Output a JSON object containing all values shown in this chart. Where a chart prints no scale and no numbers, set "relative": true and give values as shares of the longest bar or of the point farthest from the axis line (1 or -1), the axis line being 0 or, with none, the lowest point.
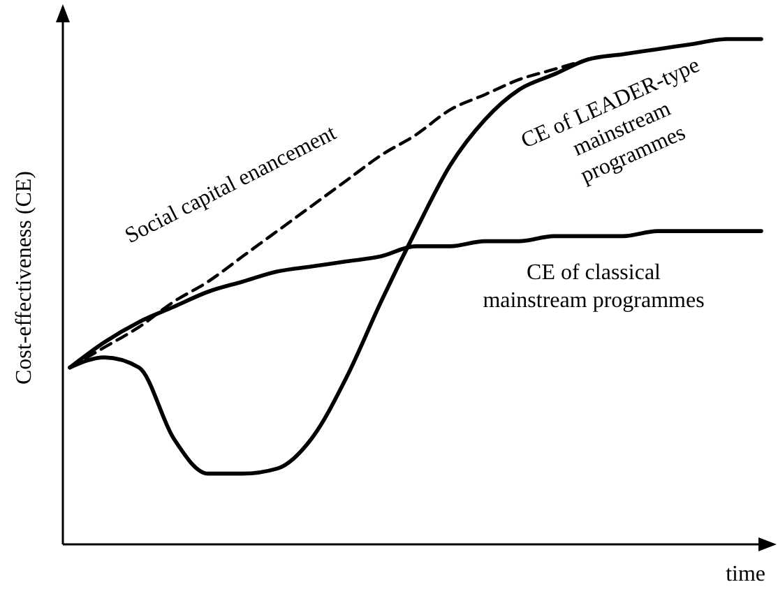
{
  "chart_data": {
    "type": "line",
    "relative": true,
    "xlabel": "time",
    "ylabel": "Cost-effectiveness (CE)",
    "marker": "none",
    "categories": [
      null,
      null,
      null,
      null,
      null,
      null,
      null,
      null,
      null,
      null,
      null,
      null,
      null,
      null,
      null,
      null,
      null,
      null,
      null,
      null,
      null
    ],
    "series": [
      {
        "name": "Social capital enancement",
        "color": "#000000",
        "line_style": "dashed",
        "values": [
          0.35,
          0.39,
          0.43,
          0.48,
          0.52,
          0.57,
          0.62,
          0.67,
          0.72,
          0.77,
          0.81,
          0.86,
          0.89,
          0.92,
          0.94,
          0.96,
          null,
          null,
          null,
          null,
          null
        ]
      },
      {
        "name": "CE of LEADER-type mainstream programmes",
        "color": "#000000",
        "line_style": "solid",
        "values": [
          0.35,
          0.37,
          0.35,
          0.21,
          0.14,
          0.14,
          0.15,
          0.21,
          0.33,
          0.48,
          0.62,
          0.75,
          0.84,
          0.9,
          0.93,
          0.96,
          0.97,
          0.98,
          0.99,
          1.0,
          1.0
        ]
      },
      {
        "name": "CE of classical mainstream programmes",
        "color": "#000000",
        "line_style": "solid",
        "values": [
          0.35,
          0.4,
          0.44,
          0.47,
          0.5,
          0.52,
          0.54,
          0.55,
          0.56,
          0.57,
          0.59,
          0.59,
          0.6,
          0.6,
          0.61,
          0.61,
          0.61,
          0.62,
          0.62,
          0.62,
          0.62
        ]
      }
    ]
  }
}
